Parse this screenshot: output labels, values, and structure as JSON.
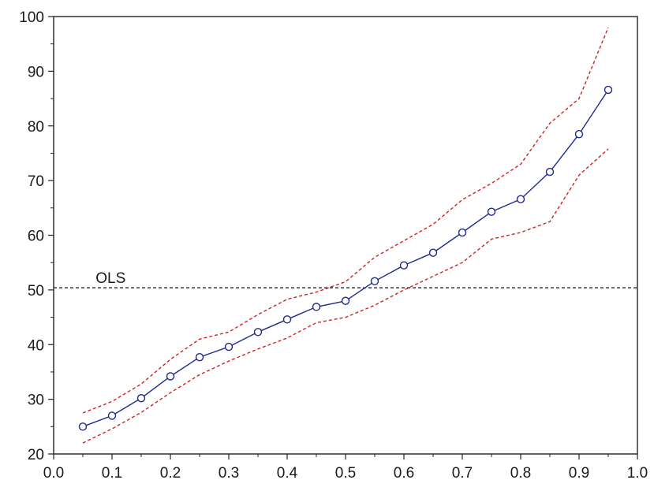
{
  "chart_data": {
    "type": "line",
    "title": "",
    "xlabel": "",
    "ylabel": "",
    "xlim": [
      0.0,
      1.0
    ],
    "ylim": [
      20,
      100
    ],
    "x_ticks": [
      "0.0",
      "0.1",
      "0.2",
      "0.3",
      "0.4",
      "0.5",
      "0.6",
      "0.7",
      "0.8",
      "0.9",
      "1.0"
    ],
    "y_ticks": [
      "20",
      "30",
      "40",
      "50",
      "60",
      "70",
      "80",
      "90",
      "100"
    ],
    "x": [
      0.05,
      0.1,
      0.15,
      0.2,
      0.25,
      0.3,
      0.35,
      0.4,
      0.45,
      0.5,
      0.55,
      0.6,
      0.65,
      0.7,
      0.75,
      0.8,
      0.85,
      0.9,
      0.95
    ],
    "series": [
      {
        "role": "estimate",
        "style": "solid-with-circle-markers",
        "color": "#1f2a8a",
        "values": [
          25.0,
          27.0,
          30.2,
          34.2,
          37.7,
          39.6,
          42.3,
          44.6,
          46.9,
          48.0,
          51.6,
          54.5,
          56.8,
          60.5,
          64.3,
          66.6,
          71.6,
          78.5,
          86.6
        ]
      },
      {
        "role": "upper-band",
        "style": "dashed",
        "color": "#cc2222",
        "values": [
          27.5,
          29.6,
          32.8,
          37.3,
          41.0,
          42.3,
          45.5,
          48.3,
          49.6,
          51.5,
          56.0,
          59.0,
          62.0,
          66.5,
          69.5,
          73.0,
          80.5,
          85.0,
          98.0
        ]
      },
      {
        "role": "lower-band",
        "style": "dashed",
        "color": "#cc2222",
        "values": [
          22.0,
          24.6,
          27.6,
          31.2,
          34.5,
          37.0,
          39.2,
          41.2,
          44.0,
          45.0,
          47.2,
          50.0,
          52.5,
          55.0,
          59.3,
          60.5,
          62.5,
          71.0,
          75.8
        ]
      }
    ],
    "reference_lines": [
      {
        "label": "OLS",
        "y": 50.4,
        "style": "dashed",
        "color": "#111111"
      }
    ],
    "grid": false,
    "legend": "none"
  }
}
